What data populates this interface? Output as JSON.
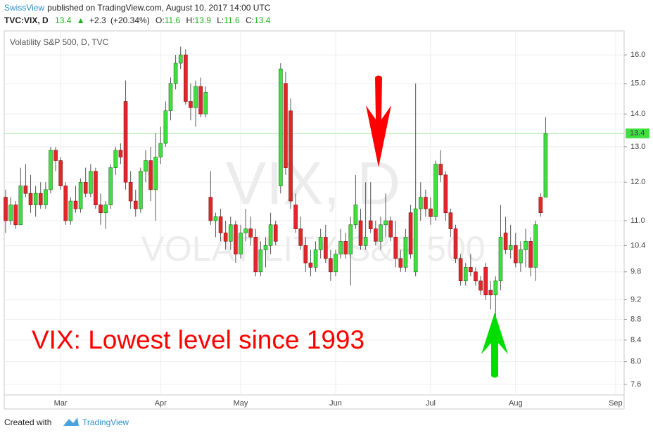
{
  "header": {
    "author": "SwissView",
    "published": "published on TradingView.com, August 10, 2017 14:00 UTC"
  },
  "chart_data": {
    "type": "candlestick",
    "title": "Volatility S&P 500, D, TVC",
    "symbol": "TVC:VIX, D",
    "watermark": "VIX, D",
    "watermark_sub": "VOLATILITY S&P 500",
    "annotation": "VIX: Lowest level since 1993",
    "quote": {
      "close": 13.4,
      "change": "+2.3",
      "change_pct": "(+20.34%)",
      "ohlc": [
        {
          "label": "O:",
          "value": 11.6
        },
        {
          "label": "H:",
          "value": 13.9
        },
        {
          "label": "L:",
          "value": 11.6
        },
        {
          "label": "C:",
          "value": 13.4
        }
      ]
    },
    "log_scale": true,
    "grid": true,
    "up_color": "#3fe03f",
    "down_color": "#e3262a",
    "ylim": [
      7.42,
      16.89
    ],
    "yticks": [
      7.6,
      {
        "value": 8,
        "label": "8.0"
      },
      8.4,
      8.8,
      9.2,
      9.8,
      10.4,
      {
        "value": 11,
        "label": "11.0"
      },
      {
        "value": 12,
        "label": "12.0"
      },
      {
        "value": 13,
        "label": "13.0"
      },
      {
        "value": 14,
        "label": "14.0"
      },
      {
        "value": 15,
        "label": "15.0"
      },
      {
        "value": 16,
        "label": "16.0"
      }
    ],
    "categories": [
      null,
      null,
      null,
      null,
      null,
      null,
      null,
      null,
      null,
      null,
      null,
      "Mar",
      null,
      null,
      null,
      null,
      null,
      null,
      null,
      null,
      null,
      null,
      null,
      null,
      null,
      null,
      null,
      null,
      null,
      null,
      null,
      "Apr",
      null,
      null,
      null,
      null,
      null,
      null,
      null,
      null,
      null,
      null,
      null,
      null,
      null,
      null,
      null,
      "May",
      null,
      null,
      null,
      null,
      null,
      null,
      null,
      null,
      null,
      null,
      null,
      null,
      null,
      null,
      null,
      null,
      null,
      null,
      "Jun",
      null,
      null,
      null,
      null,
      null,
      null,
      null,
      null,
      null,
      null,
      null,
      null,
      null,
      null,
      null,
      null,
      null,
      null,
      "Jul",
      null,
      null,
      null,
      null,
      null,
      null,
      null,
      null,
      null,
      null,
      null,
      null,
      null,
      null,
      null,
      null,
      "Aug",
      null,
      null,
      null,
      null,
      null,
      null,
      null,
      null,
      null,
      null,
      null,
      null,
      null,
      null,
      null,
      null,
      null,
      null,
      null,
      "Sep",
      null
    ],
    "open": [
      11.6,
      11.0,
      11.4,
      10.9,
      11.9,
      11.7,
      11.4,
      11.7,
      11.4,
      11.8,
      12.9,
      12.6,
      11.9,
      11.0,
      11.5,
      11.3,
      12.0,
      11.7,
      12.3,
      11.4,
      11.2,
      11.4,
      12.4,
      12.9,
      14.4,
      12.0,
      11.5,
      11.3,
      12.3,
      12.6,
      11.8,
      12.7,
      13.1,
      14.1,
      15.0,
      15.7,
      16.0,
      14.4,
      14.2,
      14.9,
      14.0,
      11.6,
      11.0,
      11.1,
      10.7,
      10.5,
      10.9,
      10.2,
      10.7,
      10.8,
      10.6,
      9.8,
      10.3,
      10.4,
      10.9,
      11.9,
      15.0,
      14.1,
      11.4,
      10.8,
      10.4,
      10.0,
      9.9,
      10.3,
      10.6,
      10.1,
      9.8,
      10.2,
      10.5,
      10.2,
      10.9,
      11.0,
      10.4,
      11.0,
      10.8,
      10.5,
      10.9,
      11.0,
      10.6,
      10.1,
      9.9,
      11.2,
      9.8,
      11.3,
      11.6,
      11.3,
      11.1,
      12.5,
      12.2,
      11.2,
      10.8,
      10.1,
      9.6,
      9.9,
      9.8,
      9.6,
      9.9,
      9.4,
      9.3,
      9.6,
      10.7,
      10.3,
      10.4,
      10.0,
      10.3,
      10.5,
      9.9,
      11.6,
      11.6,
      null,
      null,
      null,
      null,
      null,
      null,
      null,
      null,
      null,
      null,
      null,
      null,
      null,
      null,
      null
    ],
    "high": [
      11.8,
      11.6,
      11.5,
      12.4,
      12.5,
      12.2,
      11.9,
      12.0,
      12.0,
      13.0,
      13.0,
      12.7,
      12.0,
      11.6,
      11.9,
      12.1,
      12.4,
      12.5,
      12.4,
      11.7,
      11.5,
      12.5,
      13.0,
      13.1,
      15.1,
      12.3,
      11.8,
      12.4,
      12.9,
      13.0,
      13.4,
      13.6,
      14.4,
      15.2,
      16.0,
      16.3,
      16.2,
      15.0,
      15.1,
      15.2,
      14.9,
      12.3,
      11.2,
      11.3,
      11.0,
      11.1,
      11.0,
      10.9,
      11.3,
      11.1,
      10.8,
      10.5,
      10.6,
      11.2,
      11.0,
      15.7,
      15.4,
      14.5,
      11.7,
      11.1,
      10.6,
      10.3,
      10.5,
      10.8,
      10.9,
      10.3,
      10.3,
      10.8,
      10.7,
      11.1,
      12.2,
      11.3,
      12.0,
      12.0,
      11.0,
      11.1,
      11.7,
      11.1,
      11.0,
      10.3,
      10.8,
      11.4,
      15.0,
      12.0,
      11.8,
      11.6,
      12.6,
      12.9,
      12.3,
      11.3,
      10.9,
      10.2,
      10.0,
      10.2,
      9.9,
      9.7,
      10.0,
      9.6,
      9.7,
      11.4,
      11.1,
      10.9,
      10.7,
      10.5,
      10.8,
      10.6,
      11.0,
      11.7,
      13.9,
      null,
      null,
      null,
      null,
      null,
      null,
      null,
      null,
      null,
      null,
      null,
      null,
      null,
      null,
      null
    ],
    "low": [
      10.7,
      10.9,
      10.8,
      10.9,
      11.6,
      11.2,
      11.1,
      11.3,
      11.3,
      11.7,
      12.3,
      11.8,
      10.9,
      10.9,
      11.2,
      11.2,
      11.6,
      11.6,
      11.3,
      10.9,
      10.8,
      11.3,
      12.2,
      12.5,
      11.8,
      11.3,
      11.1,
      11.2,
      12.0,
      11.5,
      11.0,
      12.5,
      13.0,
      13.8,
      14.8,
      15.5,
      14.3,
      13.8,
      13.6,
      13.9,
      13.9,
      10.9,
      10.6,
      10.5,
      10.3,
      10.3,
      10.0,
      10.1,
      10.5,
      10.4,
      9.7,
      9.7,
      9.9,
      10.2,
      10.4,
      11.7,
      12.2,
      11.3,
      10.7,
      10.3,
      9.8,
      9.7,
      9.8,
      10.1,
      10.0,
      9.6,
      9.7,
      10.1,
      10.1,
      9.5,
      10.8,
      10.3,
      10.3,
      10.7,
      10.4,
      10.3,
      10.6,
      10.5,
      9.9,
      9.8,
      9.8,
      10.1,
      9.7,
      11.0,
      11.1,
      10.9,
      11.0,
      12.0,
      11.0,
      10.6,
      10.0,
      9.5,
      9.5,
      9.7,
      9.5,
      9.3,
      9.2,
      9.0,
      8.8,
      9.4,
      10.2,
      10.1,
      9.9,
      9.8,
      9.9,
      9.7,
      9.6,
      11.1,
      11.6,
      null,
      null,
      null,
      null,
      null,
      null,
      null,
      null,
      null,
      null,
      null,
      null,
      null,
      null,
      null
    ],
    "close": [
      11.0,
      11.4,
      10.9,
      11.9,
      11.7,
      11.4,
      11.7,
      11.4,
      11.8,
      12.9,
      12.6,
      11.9,
      11.0,
      11.5,
      11.3,
      12.0,
      11.7,
      12.3,
      11.4,
      11.2,
      11.4,
      12.4,
      12.9,
      12.7,
      12.0,
      11.5,
      11.3,
      12.3,
      12.6,
      11.8,
      12.7,
      13.1,
      14.1,
      15.0,
      15.7,
      16.0,
      14.4,
      14.2,
      14.9,
      14.0,
      14.7,
      11.0,
      11.1,
      10.7,
      10.5,
      10.9,
      10.2,
      10.7,
      10.8,
      10.6,
      9.8,
      10.3,
      10.4,
      10.9,
      10.5,
      15.5,
      12.4,
      11.5,
      10.8,
      10.4,
      10.0,
      9.9,
      10.3,
      10.6,
      10.1,
      9.8,
      10.2,
      10.5,
      10.2,
      10.9,
      11.4,
      10.4,
      10.6,
      10.8,
      10.5,
      10.9,
      11.0,
      10.6,
      10.1,
      9.9,
      10.6,
      10.2,
      11.3,
      11.6,
      11.3,
      11.1,
      12.5,
      12.2,
      11.2,
      10.8,
      10.1,
      9.6,
      9.9,
      9.8,
      9.6,
      9.4,
      9.3,
      9.3,
      9.6,
      10.6,
      10.3,
      10.4,
      10.0,
      10.3,
      10.5,
      9.9,
      10.9,
      11.2,
      13.4,
      null,
      null,
      null,
      null,
      null,
      null,
      null,
      null,
      null,
      null,
      null,
      null,
      null,
      null,
      null
    ]
  },
  "footer": {
    "created": "Created with",
    "brand": "TradingView"
  }
}
